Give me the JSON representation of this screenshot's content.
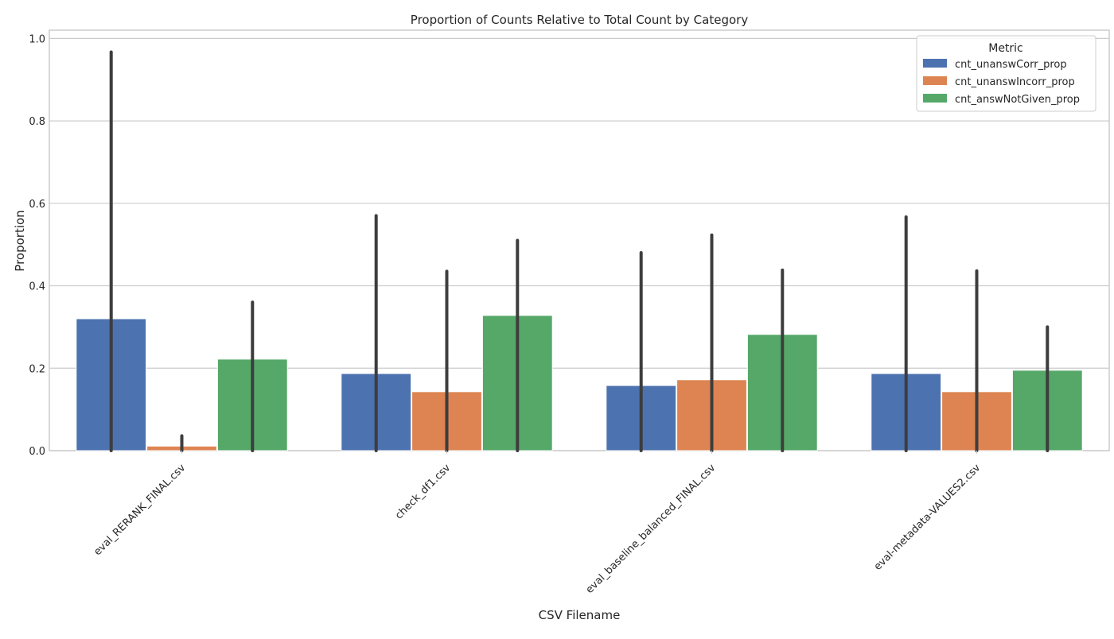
{
  "chart_data": {
    "type": "bar",
    "title": "Proportion of Counts Relative to Total Count by Category",
    "xlabel": "CSV Filename",
    "ylabel": "Proportion",
    "ylim": [
      0,
      1.02
    ],
    "yticks": [
      "0.0",
      "0.2",
      "0.4",
      "0.6",
      "0.8",
      "1.0"
    ],
    "grid": true,
    "legend_placement": "top-right",
    "legend_title": "Metric",
    "categories": [
      "eval_RERANK_FINAL.csv",
      "check_df1.csv",
      "eval_baseline_balanced_FINAL.csv",
      "eval-metadata-VALUES2.csv"
    ],
    "series": [
      {
        "name": "cnt_unanswCorr_prop",
        "color": "#4c72b0",
        "values": [
          0.32,
          0.187,
          0.158,
          0.187
        ],
        "error_low": [
          0.0,
          0.0,
          0.0,
          0.0
        ],
        "error_high": [
          0.967,
          0.57,
          0.48,
          0.567
        ]
      },
      {
        "name": "cnt_unanswIncorr_prop",
        "color": "#dd8452",
        "values": [
          0.011,
          0.143,
          0.172,
          0.143
        ],
        "error_low": [
          0.0,
          0.0,
          0.0,
          0.0
        ],
        "error_high": [
          0.036,
          0.435,
          0.523,
          0.436
        ]
      },
      {
        "name": "cnt_answNotGiven_prop",
        "color": "#55a868",
        "values": [
          0.222,
          0.328,
          0.282,
          0.195
        ],
        "error_low": [
          0.0,
          0.0,
          0.0,
          0.0
        ],
        "error_high": [
          0.36,
          0.51,
          0.438,
          0.3
        ]
      }
    ]
  }
}
